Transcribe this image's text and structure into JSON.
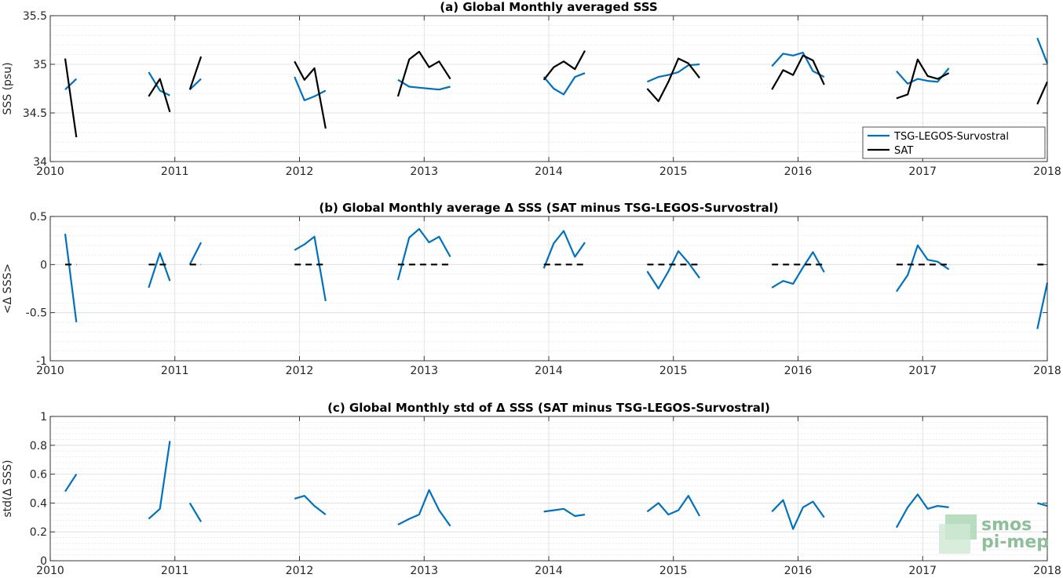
{
  "chart_data": [
    {
      "type": "line",
      "title": "(a) Global Monthly averaged SSS",
      "ylabel": "SSS (psu)",
      "xlim": [
        2010,
        2018
      ],
      "ylim": [
        34,
        35.5
      ],
      "xticks": [
        "2010",
        "2011",
        "2012",
        "2013",
        "2014",
        "2015",
        "2016",
        "2017",
        "2018"
      ],
      "yticks": [
        "34",
        "34.5",
        "35",
        "35.5"
      ],
      "grid": true,
      "legend_position": "bottom-right",
      "series": [
        {
          "name": "TSG-LEGOS-Survostral",
          "color": "#0072bd",
          "segments": [
            [
              [
                2010.12,
                34.74
              ],
              [
                2010.21,
                34.85
              ]
            ],
            [
              [
                2010.79,
                34.92
              ],
              [
                2010.88,
                34.73
              ],
              [
                2010.96,
                34.68
              ]
            ],
            [
              [
                2011.12,
                34.74
              ],
              [
                2011.21,
                34.85
              ]
            ],
            [
              [
                2011.96,
                34.87
              ],
              [
                2012.04,
                34.63
              ],
              [
                2012.12,
                34.67
              ],
              [
                2012.21,
                34.73
              ]
            ],
            [
              [
                2012.79,
                34.84
              ],
              [
                2012.88,
                34.77
              ],
              [
                2012.96,
                34.76
              ],
              [
                2013.04,
                34.75
              ],
              [
                2013.12,
                34.74
              ],
              [
                2013.21,
                34.77
              ]
            ],
            [
              [
                2013.96,
                34.87
              ],
              [
                2014.04,
                34.75
              ],
              [
                2014.12,
                34.69
              ],
              [
                2014.21,
                34.87
              ],
              [
                2014.29,
                34.91
              ]
            ],
            [
              [
                2014.79,
                34.82
              ],
              [
                2014.88,
                34.87
              ],
              [
                2014.96,
                34.89
              ],
              [
                2015.04,
                34.92
              ],
              [
                2015.12,
                34.99
              ],
              [
                2015.21,
                35.0
              ]
            ],
            [
              [
                2015.79,
                34.98
              ],
              [
                2015.88,
                35.11
              ],
              [
                2015.96,
                35.09
              ],
              [
                2016.04,
                35.12
              ],
              [
                2016.12,
                34.93
              ],
              [
                2016.21,
                34.87
              ]
            ],
            [
              [
                2016.79,
                34.93
              ],
              [
                2016.88,
                34.8
              ],
              [
                2016.96,
                34.85
              ],
              [
                2017.04,
                34.83
              ],
              [
                2017.12,
                34.82
              ],
              [
                2017.21,
                34.96
              ]
            ],
            [
              [
                2017.92,
                35.27
              ],
              [
                2018.0,
                35.01
              ]
            ]
          ]
        },
        {
          "name": "SAT",
          "color": "#000000",
          "segments": [
            [
              [
                2010.12,
                35.06
              ],
              [
                2010.21,
                34.25
              ]
            ],
            [
              [
                2010.79,
                34.67
              ],
              [
                2010.88,
                34.85
              ],
              [
                2010.96,
                34.51
              ]
            ],
            [
              [
                2011.12,
                34.74
              ],
              [
                2011.21,
                35.08
              ]
            ],
            [
              [
                2011.96,
                35.03
              ],
              [
                2012.04,
                34.84
              ],
              [
                2012.12,
                34.96
              ],
              [
                2012.21,
                34.34
              ]
            ],
            [
              [
                2012.79,
                34.67
              ],
              [
                2012.88,
                35.05
              ],
              [
                2012.96,
                35.13
              ],
              [
                2013.04,
                34.97
              ],
              [
                2013.12,
                35.03
              ],
              [
                2013.21,
                34.85
              ]
            ],
            [
              [
                2013.96,
                34.84
              ],
              [
                2014.04,
                34.97
              ],
              [
                2014.12,
                35.03
              ],
              [
                2014.21,
                34.95
              ],
              [
                2014.29,
                35.14
              ]
            ],
            [
              [
                2014.79,
                34.75
              ],
              [
                2014.88,
                34.62
              ],
              [
                2014.96,
                34.82
              ],
              [
                2015.04,
                35.06
              ],
              [
                2015.12,
                35.01
              ],
              [
                2015.21,
                34.86
              ]
            ],
            [
              [
                2015.79,
                34.74
              ],
              [
                2015.88,
                34.94
              ],
              [
                2015.96,
                34.89
              ],
              [
                2016.04,
                35.09
              ],
              [
                2016.12,
                35.04
              ],
              [
                2016.21,
                34.79
              ]
            ],
            [
              [
                2016.79,
                34.65
              ],
              [
                2016.88,
                34.69
              ],
              [
                2016.96,
                35.05
              ],
              [
                2017.04,
                34.88
              ],
              [
                2017.12,
                34.85
              ],
              [
                2017.21,
                34.91
              ]
            ],
            [
              [
                2017.92,
                34.59
              ],
              [
                2018.0,
                34.82
              ]
            ]
          ]
        }
      ]
    },
    {
      "type": "line",
      "title": "(b) Global Monthly average Δ SSS (SAT minus TSG-LEGOS-Survostral)",
      "ylabel": "<Δ SSS>",
      "xlim": [
        2010,
        2018
      ],
      "ylim": [
        -1,
        0.5
      ],
      "xticks": [
        "2010",
        "2011",
        "2012",
        "2013",
        "2014",
        "2015",
        "2016",
        "2017",
        "2018"
      ],
      "yticks": [
        "-1",
        "-0.5",
        "0",
        "0.5"
      ],
      "grid": true,
      "series": [
        {
          "color": "#0072bd",
          "segments": [
            [
              [
                2010.12,
                0.32
              ],
              [
                2010.21,
                -0.6
              ]
            ],
            [
              [
                2010.79,
                -0.24
              ],
              [
                2010.88,
                0.12
              ],
              [
                2010.96,
                -0.17
              ]
            ],
            [
              [
                2011.12,
                0.0
              ],
              [
                2011.21,
                0.23
              ]
            ],
            [
              [
                2011.96,
                0.15
              ],
              [
                2012.04,
                0.21
              ],
              [
                2012.12,
                0.29
              ],
              [
                2012.21,
                -0.38
              ]
            ],
            [
              [
                2012.79,
                -0.16
              ],
              [
                2012.88,
                0.28
              ],
              [
                2012.96,
                0.37
              ],
              [
                2013.04,
                0.23
              ],
              [
                2013.12,
                0.29
              ],
              [
                2013.21,
                0.08
              ]
            ],
            [
              [
                2013.96,
                -0.04
              ],
              [
                2014.04,
                0.22
              ],
              [
                2014.12,
                0.35
              ],
              [
                2014.21,
                0.08
              ],
              [
                2014.29,
                0.23
              ]
            ],
            [
              [
                2014.79,
                -0.07
              ],
              [
                2014.88,
                -0.25
              ],
              [
                2014.96,
                -0.07
              ],
              [
                2015.04,
                0.14
              ],
              [
                2015.12,
                0.02
              ],
              [
                2015.21,
                -0.14
              ]
            ],
            [
              [
                2015.79,
                -0.24
              ],
              [
                2015.88,
                -0.17
              ],
              [
                2015.96,
                -0.2
              ],
              [
                2016.04,
                -0.03
              ],
              [
                2016.12,
                0.13
              ],
              [
                2016.21,
                -0.08
              ]
            ],
            [
              [
                2016.79,
                -0.28
              ],
              [
                2016.88,
                -0.11
              ],
              [
                2016.96,
                0.2
              ],
              [
                2017.04,
                0.05
              ],
              [
                2017.12,
                0.03
              ],
              [
                2017.21,
                -0.05
              ]
            ],
            [
              [
                2017.92,
                -0.67
              ],
              [
                2018.0,
                -0.19
              ]
            ]
          ]
        },
        {
          "color": "#000000",
          "style": "dashed",
          "segments": [
            [
              [
                2010.12,
                0
              ],
              [
                2010.21,
                0
              ]
            ],
            [
              [
                2010.79,
                0
              ],
              [
                2010.96,
                0
              ]
            ],
            [
              [
                2011.12,
                0
              ],
              [
                2011.21,
                0
              ]
            ],
            [
              [
                2011.96,
                0
              ],
              [
                2012.21,
                0
              ]
            ],
            [
              [
                2012.79,
                0
              ],
              [
                2013.21,
                0
              ]
            ],
            [
              [
                2013.96,
                0
              ],
              [
                2014.29,
                0
              ]
            ],
            [
              [
                2014.79,
                0
              ],
              [
                2015.21,
                0
              ]
            ],
            [
              [
                2015.79,
                0
              ],
              [
                2016.21,
                0
              ]
            ],
            [
              [
                2016.79,
                0
              ],
              [
                2017.21,
                0
              ]
            ],
            [
              [
                2017.92,
                0
              ],
              [
                2018.0,
                0
              ]
            ]
          ]
        }
      ]
    },
    {
      "type": "line",
      "title": "(c) Global Monthly std of Δ SSS (SAT minus TSG-LEGOS-Survostral)",
      "ylabel": "std(Δ SSS)",
      "xlim": [
        2010,
        2018
      ],
      "ylim": [
        0,
        1
      ],
      "xticks": [
        "2010",
        "2011",
        "2012",
        "2013",
        "2014",
        "2015",
        "2016",
        "2017",
        "2018"
      ],
      "yticks": [
        "0",
        "0.2",
        "0.4",
        "0.6",
        "0.8",
        "1"
      ],
      "grid": true,
      "series": [
        {
          "color": "#0072bd",
          "segments": [
            [
              [
                2010.12,
                0.48
              ],
              [
                2010.21,
                0.6
              ]
            ],
            [
              [
                2010.79,
                0.29
              ],
              [
                2010.88,
                0.36
              ],
              [
                2010.96,
                0.83
              ]
            ],
            [
              [
                2011.12,
                0.4
              ],
              [
                2011.21,
                0.27
              ]
            ],
            [
              [
                2011.96,
                0.43
              ],
              [
                2012.04,
                0.45
              ],
              [
                2012.12,
                0.38
              ],
              [
                2012.21,
                0.32
              ]
            ],
            [
              [
                2012.79,
                0.25
              ],
              [
                2012.88,
                0.29
              ],
              [
                2012.96,
                0.32
              ],
              [
                2013.04,
                0.49
              ],
              [
                2013.12,
                0.35
              ],
              [
                2013.21,
                0.24
              ]
            ],
            [
              [
                2013.96,
                0.34
              ],
              [
                2014.04,
                0.35
              ],
              [
                2014.12,
                0.36
              ],
              [
                2014.21,
                0.31
              ],
              [
                2014.29,
                0.32
              ]
            ],
            [
              [
                2014.79,
                0.34
              ],
              [
                2014.88,
                0.4
              ],
              [
                2014.96,
                0.32
              ],
              [
                2015.04,
                0.35
              ],
              [
                2015.12,
                0.45
              ],
              [
                2015.21,
                0.31
              ]
            ],
            [
              [
                2015.79,
                0.34
              ],
              [
                2015.88,
                0.42
              ],
              [
                2015.96,
                0.22
              ],
              [
                2016.04,
                0.37
              ],
              [
                2016.12,
                0.41
              ],
              [
                2016.21,
                0.3
              ]
            ],
            [
              [
                2016.79,
                0.23
              ],
              [
                2016.88,
                0.37
              ],
              [
                2016.96,
                0.46
              ],
              [
                2017.04,
                0.36
              ],
              [
                2017.12,
                0.38
              ],
              [
                2017.21,
                0.37
              ]
            ],
            [
              [
                2017.92,
                0.4
              ],
              [
                2018.0,
                0.38
              ]
            ]
          ]
        }
      ]
    }
  ],
  "watermark": {
    "line1": "smos",
    "line2": "pi-mep",
    "color": "#8fbf9a"
  }
}
